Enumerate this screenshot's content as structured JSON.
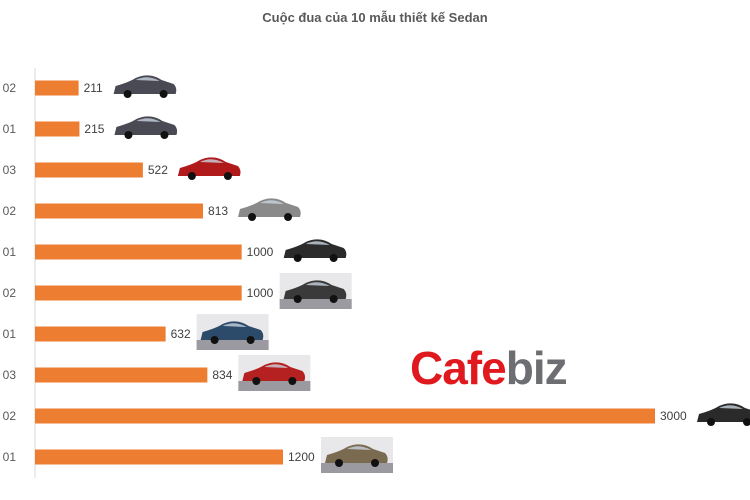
{
  "chart_data": {
    "type": "bar",
    "orientation": "horizontal",
    "title": "Cuộc đua của 10 mẫu thiết kế Sedan",
    "categories": [
      "02",
      "01",
      "03",
      "02",
      "01",
      "02",
      "01",
      "03",
      "02",
      "01"
    ],
    "values": [
      211,
      215,
      522,
      813,
      1000,
      1000,
      632,
      834,
      3000,
      1200
    ],
    "xlim": [
      0,
      3000
    ],
    "bar_color": "#ed7d31",
    "xlabel": "",
    "ylabel": ""
  },
  "watermark": {
    "part1": "Cafe",
    "part2": "biz"
  },
  "colors": {
    "brand_red": "#e0191f",
    "brand_gray": "#6d6e71"
  }
}
